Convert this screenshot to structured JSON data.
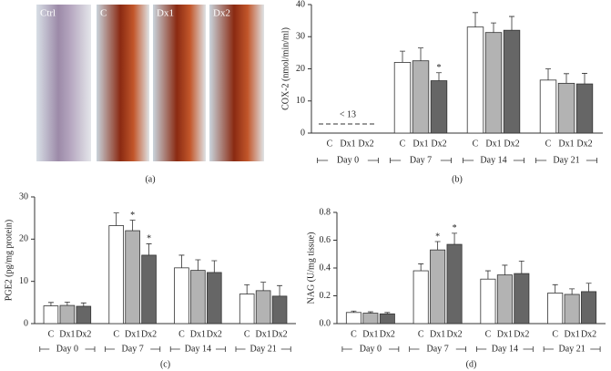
{
  "panel_a": {
    "labels": [
      "Ctrl",
      "C",
      "Dx1",
      "Dx2"
    ],
    "caption": "(a)"
  },
  "chart_data": [
    {
      "type": "bar",
      "caption": "(b)",
      "y_label": "COX-2 (nmol/min/ml)",
      "note": "< 13",
      "categories": [
        "Day 0",
        "Day 7",
        "Day 14",
        "Day 21"
      ],
      "ylim": [
        0,
        40
      ],
      "yticks": [
        0,
        10,
        20,
        30,
        40
      ],
      "series": [
        {
          "name": "C",
          "color": "#ffffff",
          "values": [
            null,
            22,
            33,
            16.5
          ],
          "errors": [
            null,
            3.5,
            4.5,
            3.5
          ],
          "significance": [
            null,
            null,
            null,
            null
          ]
        },
        {
          "name": "Dx1",
          "color": "#b3b3b3",
          "values": [
            null,
            22.5,
            31.3,
            15.5
          ],
          "errors": [
            null,
            4,
            3,
            3
          ],
          "significance": [
            null,
            null,
            null,
            null
          ]
        },
        {
          "name": "Dx2",
          "color": "#666666",
          "values": [
            null,
            16.3,
            32,
            15.3
          ],
          "errors": [
            null,
            2.5,
            4.3,
            3.3
          ],
          "significance": [
            null,
            "*",
            null,
            null
          ]
        }
      ]
    },
    {
      "type": "bar",
      "caption": "(c)",
      "y_label": "PGE2 (pg/mg protein)",
      "categories": [
        "Day 0",
        "Day 7",
        "Day 14",
        "Day 21"
      ],
      "ylim": [
        0,
        30
      ],
      "yticks": [
        0,
        10,
        20,
        30
      ],
      "series": [
        {
          "name": "C",
          "color": "#ffffff",
          "values": [
            4.2,
            23.2,
            13.2,
            7
          ],
          "errors": [
            0.8,
            3,
            3,
            2.2
          ],
          "significance": [
            null,
            null,
            null,
            null
          ]
        },
        {
          "name": "Dx1",
          "color": "#b3b3b3",
          "values": [
            4.3,
            22,
            12.6,
            7.8
          ],
          "errors": [
            0.8,
            2.5,
            2.5,
            2
          ],
          "significance": [
            null,
            "*",
            null,
            null
          ]
        },
        {
          "name": "Dx2",
          "color": "#666666",
          "values": [
            4.1,
            16.2,
            12.1,
            6.5
          ],
          "errors": [
            0.8,
            2.7,
            2.8,
            2.5
          ],
          "significance": [
            null,
            "*",
            null,
            null
          ]
        }
      ]
    },
    {
      "type": "bar",
      "caption": "(d)",
      "y_label": "NAG (U/mg tissue)",
      "categories": [
        "Day 0",
        "Day 7",
        "Day 14",
        "Day 21"
      ],
      "ylim": [
        0,
        0.8
      ],
      "yticks": [
        {
          "value": 0,
          "label": "0.0"
        },
        0.2,
        0.4,
        0.6,
        0.8
      ],
      "series": [
        {
          "name": "C",
          "color": "#ffffff",
          "values": [
            0.08,
            0.38,
            0.32,
            0.22
          ],
          "errors": [
            0.01,
            0.05,
            0.06,
            0.06
          ],
          "significance": [
            null,
            null,
            null,
            null
          ]
        },
        {
          "name": "Dx1",
          "color": "#b3b3b3",
          "values": [
            0.075,
            0.53,
            0.35,
            0.21
          ],
          "errors": [
            0.01,
            0.06,
            0.07,
            0.04
          ],
          "significance": [
            null,
            "*",
            null,
            null
          ]
        },
        {
          "name": "Dx2",
          "color": "#666666",
          "values": [
            0.07,
            0.57,
            0.36,
            0.23
          ],
          "errors": [
            0.01,
            0.08,
            0.09,
            0.06
          ],
          "significance": [
            null,
            "*",
            null,
            null
          ]
        }
      ]
    }
  ]
}
